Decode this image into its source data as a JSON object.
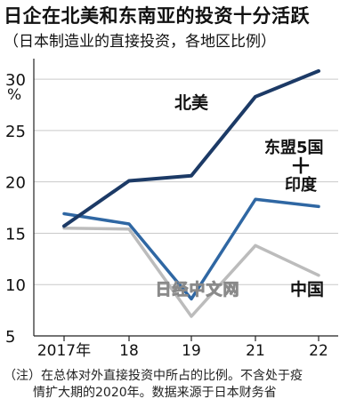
{
  "title": "日企在北美和东南亚的投资十分活跃",
  "subtitle": "（日本制造业的直接投资，各地区比例）",
  "watermark": "日经中文网",
  "note_line1": "（注）在总体对外直接投资中所占的比例。不含处于疫",
  "note_line2": "情扩大期的2020年。数据来源于日本财务省",
  "chart_data": {
    "type": "line",
    "ylabel": "%",
    "ylim": [
      5,
      32
    ],
    "yticks": [
      5,
      10,
      15,
      20,
      25,
      30
    ],
    "categories": [
      "2017年",
      "18",
      "19",
      "21",
      "22"
    ],
    "grid": true,
    "series": [
      {
        "name": "北美",
        "color": "#1c3a66",
        "values": [
          15.7,
          20.1,
          20.6,
          28.3,
          30.8
        ]
      },
      {
        "name": "东盟5国＋印度",
        "color": "#2f67a3",
        "values": [
          16.9,
          15.9,
          8.6,
          18.3,
          17.6
        ]
      },
      {
        "name": "中国",
        "color": "#bcbcbc",
        "values": [
          15.5,
          15.4,
          6.9,
          13.8,
          10.9
        ]
      }
    ]
  }
}
